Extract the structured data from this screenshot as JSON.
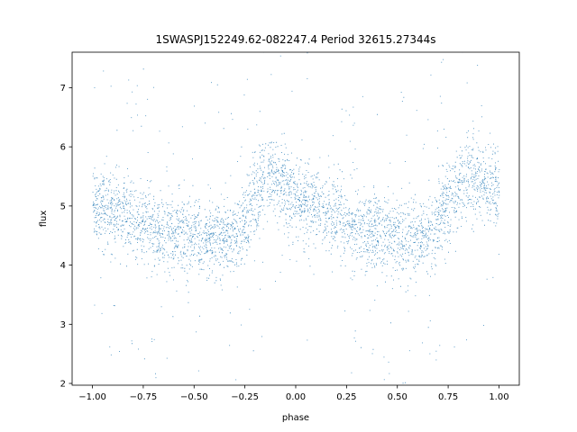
{
  "chart_data": {
    "type": "scatter",
    "title": "1SWASPJ152249.62-082247.4 Period 32615.27344s",
    "xlabel": "phase",
    "ylabel": "flux",
    "xlim": [
      -1.1,
      1.1
    ],
    "ylim": [
      1.97,
      7.6
    ],
    "x_ticks": [
      -1.0,
      -0.75,
      -0.5,
      -0.25,
      0.0,
      0.25,
      0.5,
      0.75,
      1.0
    ],
    "x_tick_labels": [
      "−1.00",
      "−0.75",
      "−0.50",
      "−0.25",
      "0.00",
      "0.25",
      "0.50",
      "0.75",
      "1.00"
    ],
    "y_ticks": [
      2,
      3,
      4,
      5,
      6,
      7
    ],
    "y_tick_labels": [
      "2",
      "3",
      "4",
      "5",
      "6",
      "7"
    ],
    "grid": false,
    "legend": "none",
    "point_color": "#1f77b4",
    "series": [
      {
        "values_description_none": "",
        "x": [
          -1.0,
          -0.9,
          -0.8,
          -0.7,
          -0.6,
          -0.5,
          -0.4,
          -0.3,
          -0.25,
          -0.2,
          -0.15,
          -0.1,
          -0.05,
          0.0,
          0.1,
          0.2,
          0.3,
          0.4,
          0.5,
          0.6,
          0.65,
          0.7,
          0.75,
          0.8,
          0.85,
          0.9,
          0.95,
          1.0
        ],
        "y": [
          5.0,
          4.9,
          4.75,
          4.62,
          4.52,
          4.45,
          4.4,
          4.45,
          4.7,
          5.25,
          5.45,
          5.45,
          5.3,
          5.15,
          4.95,
          4.8,
          4.65,
          4.52,
          4.45,
          4.42,
          4.5,
          4.75,
          5.1,
          5.35,
          5.45,
          5.45,
          5.35,
          5.2
        ]
      }
    ]
  }
}
